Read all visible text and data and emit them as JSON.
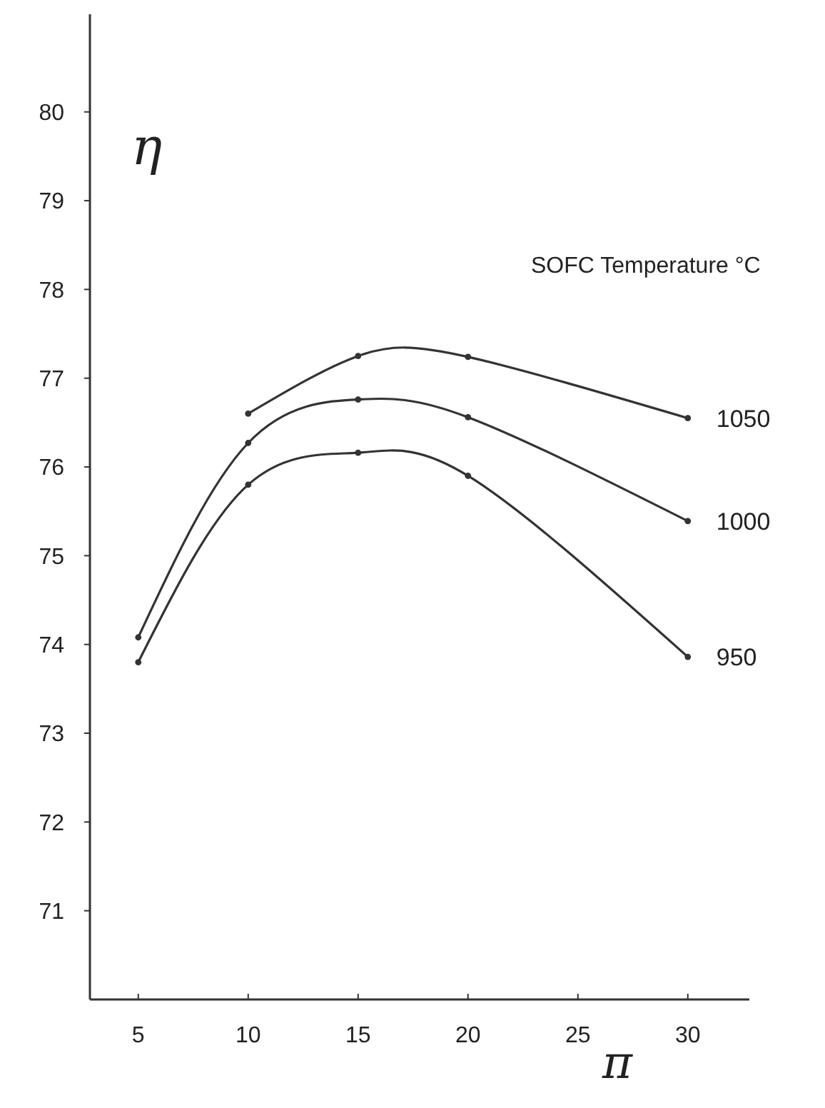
{
  "chart_data": {
    "type": "line",
    "xlabel": "π",
    "ylabel": "η",
    "legend_title": "SOFC Temperature °C",
    "xlim": [
      2.8,
      32.8
    ],
    "ylim": [
      70,
      81.1
    ],
    "xticks": [
      5,
      10,
      15,
      20,
      25,
      30
    ],
    "yticks": [
      71,
      72,
      73,
      74,
      75,
      76,
      77,
      78,
      79,
      80
    ],
    "grid": false,
    "marker": "circle",
    "line_style": "solid",
    "series": [
      {
        "name": "1050",
        "color": "#333333",
        "x": [
          10,
          15,
          20,
          30
        ],
        "values": [
          76.6,
          77.25,
          77.24,
          76.55
        ]
      },
      {
        "name": "1000",
        "color": "#333333",
        "x": [
          5,
          10,
          15,
          20,
          30
        ],
        "values": [
          74.08,
          76.27,
          76.76,
          76.56,
          75.39
        ]
      },
      {
        "name": "950",
        "color": "#333333",
        "x": [
          5,
          10,
          15,
          20,
          30
        ],
        "values": [
          73.8,
          75.8,
          76.16,
          75.9,
          73.86
        ]
      }
    ]
  }
}
